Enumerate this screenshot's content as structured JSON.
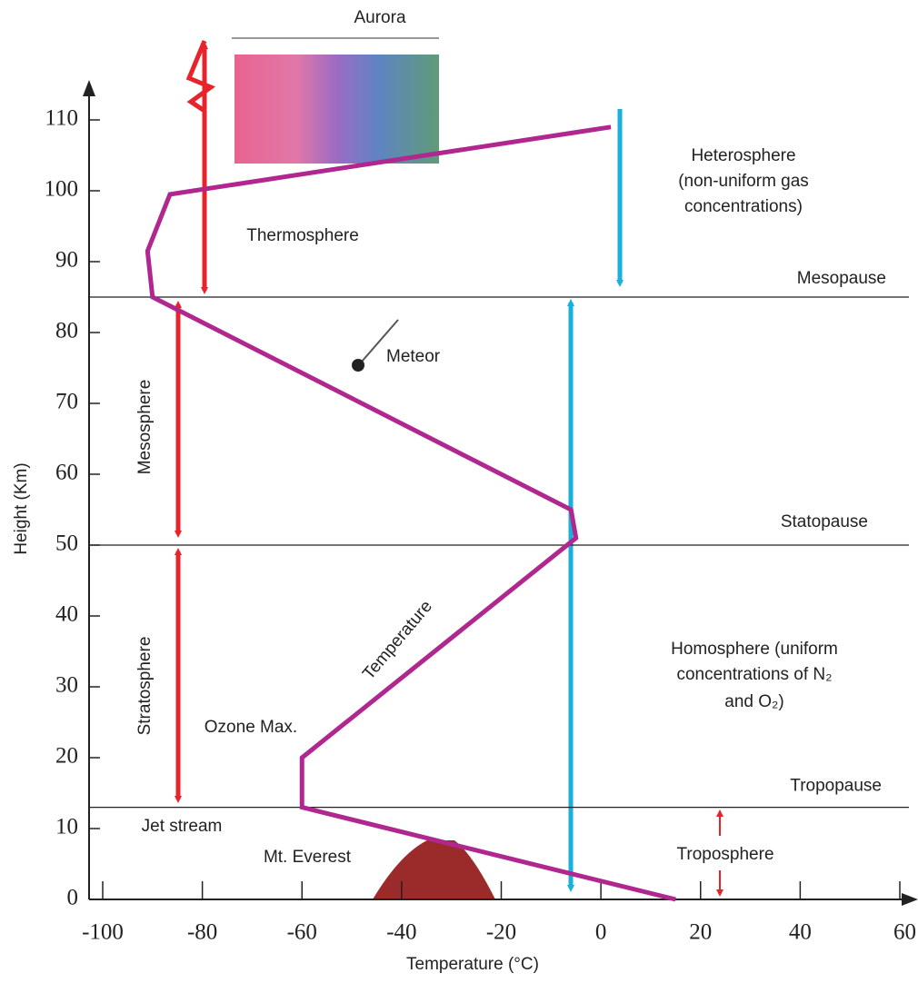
{
  "chart_data": {
    "type": "line",
    "x_label": "Temperature (°C)",
    "y_label": "Height (Km)",
    "xlim": [
      -100,
      60
    ],
    "ylim": [
      0,
      110
    ],
    "xticks": [
      -100,
      -80,
      -60,
      -40,
      -20,
      0,
      20,
      40,
      60
    ],
    "yticks": [
      0,
      10,
      20,
      30,
      40,
      50,
      60,
      70,
      80,
      90,
      100,
      110
    ],
    "series": [
      {
        "name": "Temperature",
        "color": "#b0278f",
        "x": [
          2,
          -86.5,
          -91,
          -90,
          -6,
          -5,
          -60,
          -60,
          15
        ],
        "values": [
          109,
          99.5,
          91.5,
          85,
          55,
          51,
          20,
          13,
          0
        ]
      }
    ],
    "boundaries": [
      {
        "label": "Mesopause",
        "value": 85
      },
      {
        "label": "Statopause",
        "value": 50
      },
      {
        "label": "Tropopause",
        "value": 13
      }
    ],
    "annotations": [
      "Aurora",
      "Thermosphere",
      "Mesosphere",
      "Stratosphere",
      "Heterosphere",
      "(non-uniform gas",
      "concentrations)",
      "Meteor",
      "Temperature",
      "Ozone Max.",
      "Jet stream",
      "Mt. Everest",
      "Troposphere",
      "Homosphere (uniform",
      "concentrations of N₂",
      "and O₂)"
    ]
  }
}
